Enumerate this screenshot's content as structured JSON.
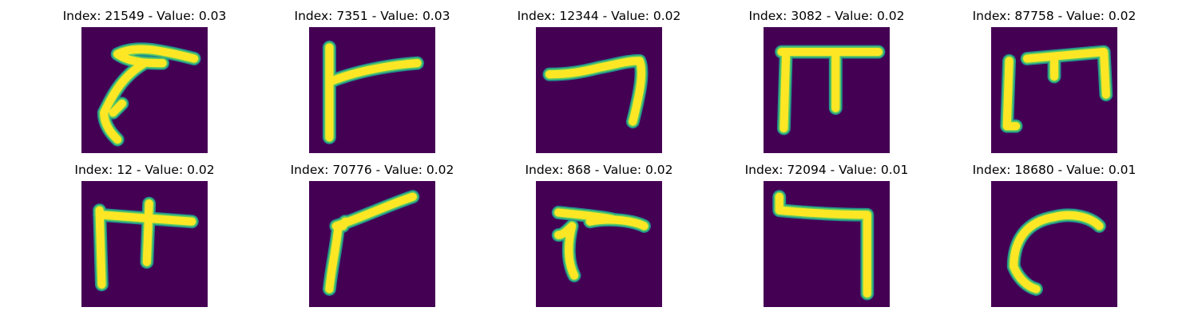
{
  "colors": {
    "background": "#440154",
    "stroke_outer": "#21918c",
    "stroke_mid": "#5ec962",
    "stroke_inner": "#fde725"
  },
  "panels": [
    {
      "title": "Index: 21549 - Value: 0.03",
      "glyph": "hook-left-curl"
    },
    {
      "title": "Index: 7351 - Value: 0.03",
      "glyph": "vertical-with-right-bar"
    },
    {
      "title": "Index: 12344 - Value: 0.02",
      "glyph": "bar-with-right-descender"
    },
    {
      "title": "Index: 3082 - Value: 0.02",
      "glyph": "pi-shape"
    },
    {
      "title": "Index: 87758 - Value: 0.02",
      "glyph": "open-frame"
    },
    {
      "title": "Index: 12 - Value: 0.02",
      "glyph": "table-shape"
    },
    {
      "title": "Index: 70776 - Value: 0.02",
      "glyph": "angled-hook"
    },
    {
      "title": "Index: 868 - Value: 0.02",
      "glyph": "bar-with-curled-leg"
    },
    {
      "title": "Index: 72094 - Value: 0.01",
      "glyph": "reverse-l"
    },
    {
      "title": "Index: 18680 - Value: 0.01",
      "glyph": "arc"
    }
  ]
}
